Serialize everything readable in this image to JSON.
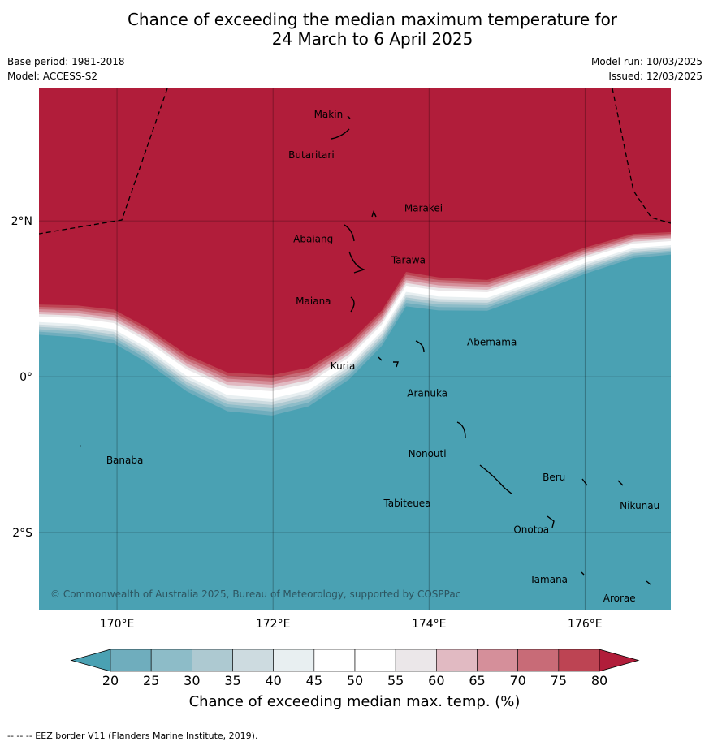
{
  "title_line1": "Chance of exceeding the median maximum temperature for",
  "title_line2": "24 March to 6 April 2025",
  "meta_left": [
    "Base period: 1981-2018",
    "Model: ACCESS-S2"
  ],
  "meta_right": [
    "Model run: 10/03/2025",
    "Issued: 12/03/2025"
  ],
  "map": {
    "lon_range": [
      169.0,
      177.1
    ],
    "lat_range": [
      -3.0,
      3.7
    ],
    "lat_ticks": [
      {
        "value": 2,
        "label": "2°N"
      },
      {
        "value": 0,
        "label": "0°"
      },
      {
        "value": -2,
        "label": "2°S"
      }
    ],
    "lon_ticks": [
      {
        "value": 170,
        "label": "170°E"
      },
      {
        "value": 172,
        "label": "172°E"
      },
      {
        "value": 174,
        "label": "174°E"
      },
      {
        "value": 176,
        "label": "176°E"
      }
    ],
    "colors": {
      "high": "#b11d3a",
      "low": "#4aa1b3"
    },
    "places": [
      {
        "name": "Makin",
        "lon": 172.9,
        "lat": 3.25
      },
      {
        "name": "Butaritari",
        "lon": 172.75,
        "lat": 2.95
      },
      {
        "name": "Marakei",
        "lon": 173.6,
        "lat": 2.05
      },
      {
        "name": "Abaiang",
        "lon": 172.75,
        "lat": 1.8
      },
      {
        "name": "Tarawa",
        "lon": 173.35,
        "lat": 1.4
      },
      {
        "name": "Maiana",
        "lon": 172.75,
        "lat": 0.95
      },
      {
        "name": "Abemama",
        "lon": 174.3,
        "lat": 0.4
      },
      {
        "name": "Kuria",
        "lon": 173.1,
        "lat": 0.2
      },
      {
        "name": "Aranuka",
        "lon": 173.75,
        "lat": 0.04
      },
      {
        "name": "Nonouti",
        "lon": 174.15,
        "lat": -0.75
      },
      {
        "name": "Banaba",
        "lon": 169.8,
        "lat": -0.97
      },
      {
        "name": "Beru",
        "lon": 175.8,
        "lat": -1.3
      },
      {
        "name": "Tabiteuea",
        "lon": 174.2,
        "lat": -1.45
      },
      {
        "name": "Nikunau",
        "lon": 176.55,
        "lat": -1.5
      },
      {
        "name": "Onotoa",
        "lon": 175.5,
        "lat": -1.9
      },
      {
        "name": "Tamana",
        "lon": 175.75,
        "lat": -2.55
      },
      {
        "name": "Arorae",
        "lon": 176.65,
        "lat": -2.75
      }
    ],
    "copyright": "© Commonwealth of Australia 2025, Bureau of Meteorology, supported by COSPPac"
  },
  "colorbar": {
    "ticks": [
      "20",
      "25",
      "30",
      "35",
      "40",
      "45",
      "50",
      "55",
      "60",
      "65",
      "70",
      "75",
      "80"
    ],
    "colors": [
      "#4aa1b3",
      "#6fadbd",
      "#8dbcc8",
      "#adc9d1",
      "#cddbe0",
      "#e8eff1",
      "#ffffff",
      "#ffffff",
      "#ebe7e9",
      "#e1bac2",
      "#d58f9a",
      "#c86b77",
      "#bd4453",
      "#b11d3a"
    ],
    "label": "Chance of exceeding median max. temp. (%)"
  },
  "eez_note": "-- -- -- EEZ border V11 (Flanders Marine Institute, 2019)."
}
